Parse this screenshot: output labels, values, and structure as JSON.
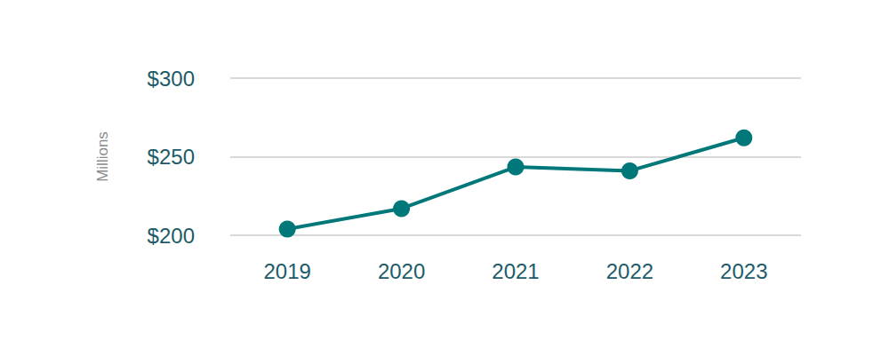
{
  "chart_data": {
    "type": "line",
    "y_label": "Millions",
    "categories": [
      "2019",
      "2020",
      "2021",
      "2022",
      "2023"
    ],
    "values": [
      204,
      217,
      243.5,
      241,
      262
    ],
    "color": "#00787a",
    "marker": "circle",
    "ylim": [
      200,
      300
    ],
    "yticks": [
      {
        "value": 200,
        "label": "$200"
      },
      {
        "value": 250,
        "label": "$250"
      },
      {
        "value": 300,
        "label": "$300"
      }
    ],
    "grid": true
  }
}
